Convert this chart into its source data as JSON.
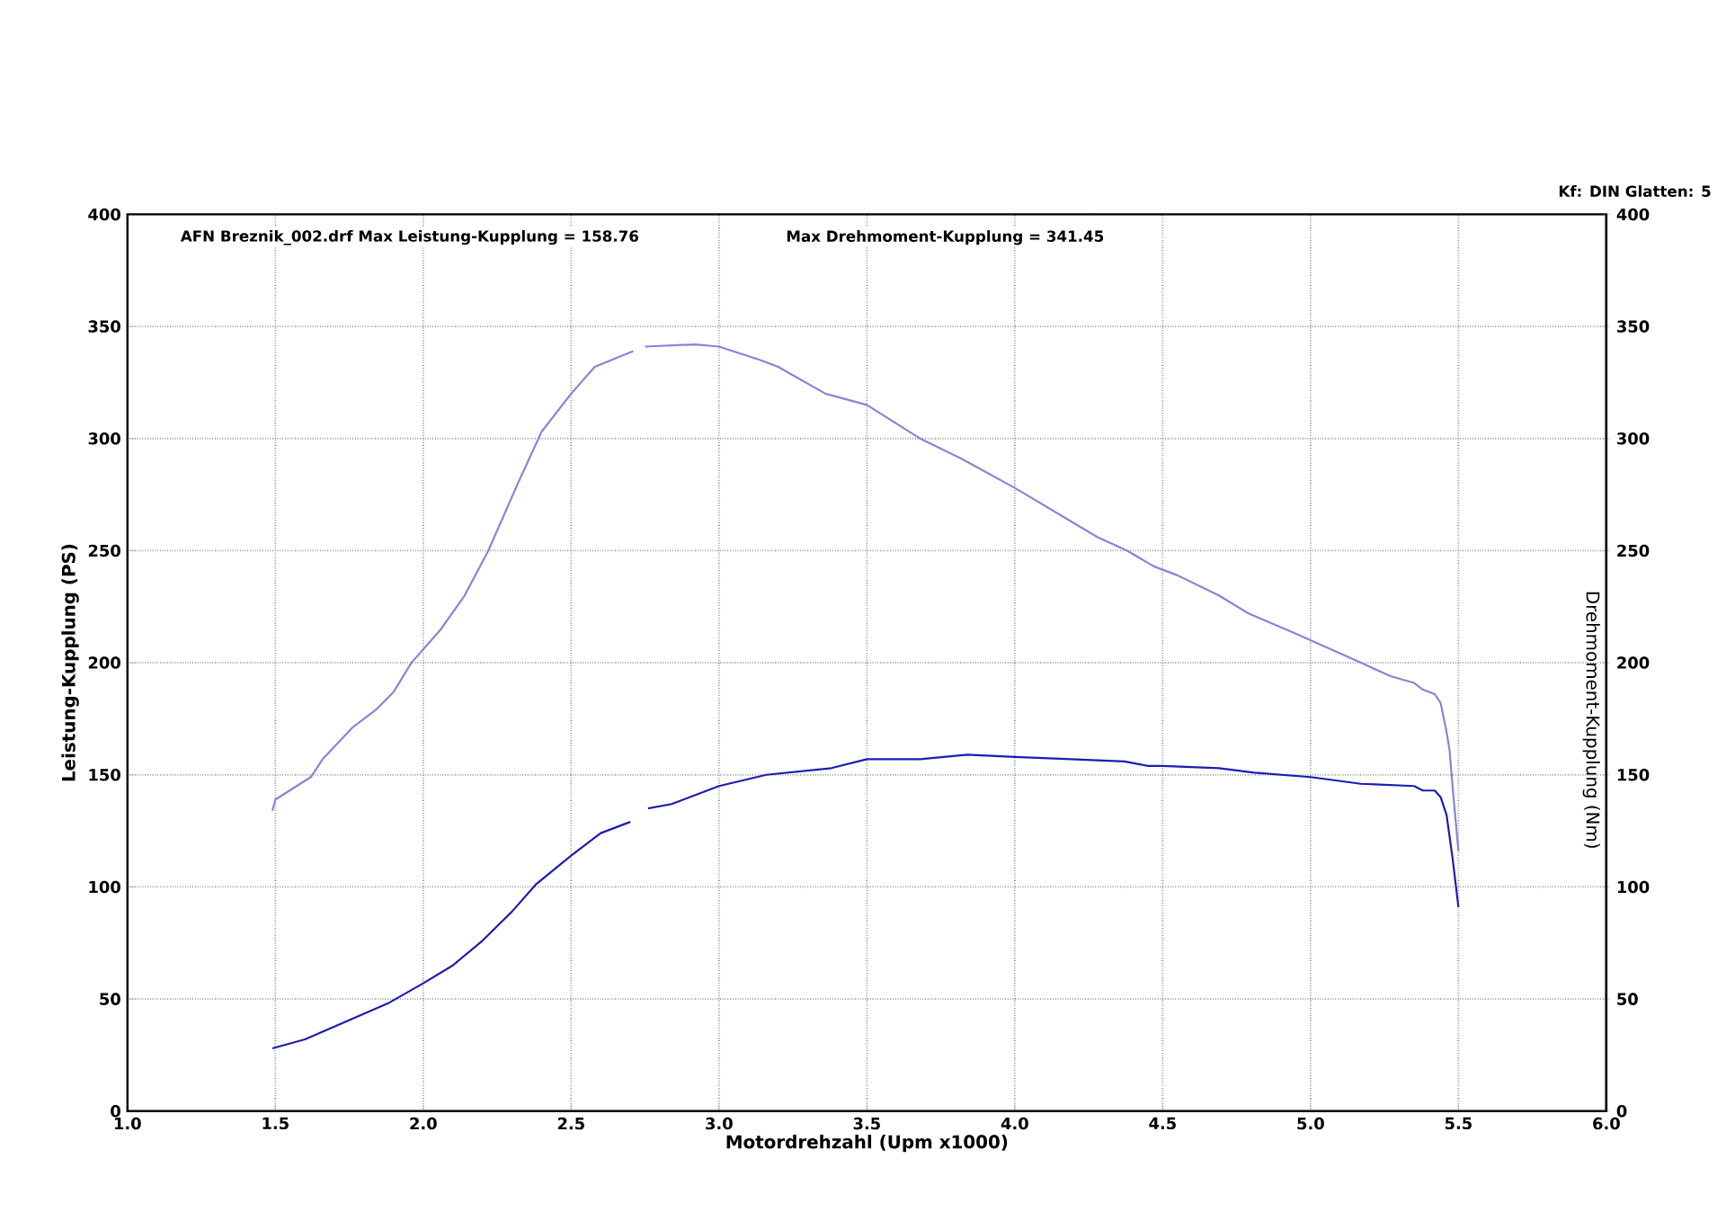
{
  "chart_data": {
    "type": "line",
    "annotations": [
      "AFN Breznik_002.drf Max Leistung-Kupplung = 158.76",
      "Max Drehmoment-Kupplung = 341.45",
      "Kf: DIN  Glatten: 5"
    ],
    "xlabel": "Motordrehzahl (Upm x1000)",
    "ylabel": "Leistung-Kupplung (PS)",
    "y2label": "Drehmoment-Kupplung (Nm)",
    "xlim": [
      1,
      6
    ],
    "xticks": [
      {
        "value": 1,
        "label": "1.0"
      },
      {
        "value": 1.5,
        "label": "1.5"
      },
      {
        "value": 2,
        "label": "2.0"
      },
      {
        "value": 2.5,
        "label": "2.5"
      },
      {
        "value": 3,
        "label": "3.0"
      },
      {
        "value": 3.5,
        "label": "3.5"
      },
      {
        "value": 4,
        "label": "4.0"
      },
      {
        "value": 4.5,
        "label": "4.5"
      },
      {
        "value": 5,
        "label": "5.0"
      },
      {
        "value": 5.5,
        "label": "5.5"
      },
      {
        "value": 6,
        "label": "6.0"
      }
    ],
    "ylim": [
      0,
      400
    ],
    "yticks": [
      0,
      50,
      100,
      150,
      200,
      250,
      300,
      350,
      400
    ],
    "y2lim": [
      0,
      400
    ],
    "y2ticks": [
      0,
      50,
      100,
      150,
      200,
      250,
      300,
      350,
      400
    ],
    "grid": true,
    "marker": "none",
    "line_style": "solid",
    "series": [
      {
        "color": "#1c1cb4",
        "x": [
          1.49,
          1.6,
          1.74,
          1.88,
          2.0,
          2.1,
          2.2,
          2.3,
          2.38,
          2.5,
          2.6,
          2.7,
          2.73,
          2.76,
          2.84,
          3.0,
          3.16,
          3.38,
          3.5,
          3.68,
          3.84,
          4.0,
          4.19,
          4.37,
          4.45,
          4.5,
          4.69,
          4.81,
          5.0,
          5.17,
          5.35,
          5.38,
          5.42,
          5.44,
          5.46,
          5.48,
          5.5
        ],
        "values": [
          28,
          32,
          40,
          48,
          57,
          65,
          76,
          89,
          101,
          114,
          124,
          129,
          null,
          135,
          137,
          145,
          150,
          153,
          157,
          157,
          159,
          158,
          157,
          156,
          154,
          154,
          153,
          151,
          149,
          146,
          145,
          143,
          143,
          140,
          132,
          113,
          91
        ]
      },
      {
        "color": "#8585d6",
        "axis": "y2",
        "x": [
          1.49,
          1.5,
          1.62,
          1.66,
          1.76,
          1.84,
          1.9,
          1.96,
          2.06,
          2.14,
          2.22,
          2.32,
          2.4,
          2.5,
          2.58,
          2.71,
          2.73,
          2.75,
          2.92,
          3.0,
          3.14,
          3.2,
          3.24,
          3.36,
          3.5,
          3.68,
          3.82,
          4.0,
          4.14,
          4.28,
          4.38,
          4.47,
          4.55,
          4.69,
          4.79,
          4.95,
          5.17,
          5.27,
          5.35,
          5.38,
          5.42,
          5.44,
          5.46,
          5.47,
          5.48,
          5.5
        ],
        "values": [
          134,
          139,
          149,
          157,
          171,
          179,
          187,
          200,
          215,
          230,
          250,
          280,
          303,
          320,
          332,
          339,
          null,
          341,
          342,
          341,
          335,
          332,
          329,
          320,
          315,
          300,
          291,
          278,
          267,
          256,
          250,
          243,
          239,
          230,
          222,
          213,
          200,
          194,
          191,
          188,
          186,
          182,
          169,
          161,
          145,
          116
        ]
      }
    ]
  }
}
